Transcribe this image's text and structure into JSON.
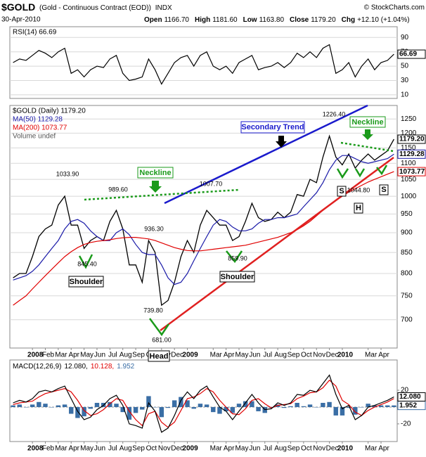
{
  "header": {
    "symbol": "$GOLD",
    "description": "(Gold - Continuous Contract (EOD))",
    "exchange": "INDX",
    "source": "© StockCharts.com",
    "date": "30-Apr-2010",
    "quote": [
      {
        "label": "Open",
        "value": "1166.70"
      },
      {
        "label": "High",
        "value": "1181.60"
      },
      {
        "label": "Low",
        "value": "1163.80"
      },
      {
        "label": "Close",
        "value": "1179.20"
      },
      {
        "label": "Chg",
        "value": "+12.10 (+1.04%)"
      }
    ]
  },
  "chart_data": [
    {
      "type": "line",
      "ylim": [
        5,
        105
      ],
      "yticks": [
        10,
        30,
        50,
        70,
        90
      ],
      "grid": true,
      "series": [
        {
          "name": "RSI(14) 66.69",
          "tag": "66.69",
          "color": "#000000",
          "values": [
            55,
            60,
            58,
            65,
            72,
            68,
            62,
            70,
            75,
            40,
            45,
            35,
            45,
            50,
            48,
            60,
            65,
            40,
            30,
            32,
            35,
            60,
            45,
            25,
            40,
            55,
            62,
            65,
            50,
            65,
            70,
            50,
            45,
            50,
            40,
            55,
            60,
            65,
            45,
            48,
            50,
            55,
            48,
            55,
            68,
            62,
            70,
            62,
            75,
            80,
            40,
            45,
            55,
            35,
            50,
            60,
            45,
            55,
            58,
            66.69
          ]
        }
      ]
    },
    {
      "type": "line",
      "log_scale": true,
      "ylim": [
        645,
        1300
      ],
      "yticks": [
        700,
        750,
        800,
        850,
        900,
        950,
        1000,
        1050,
        1100,
        1150,
        1200,
        1250
      ],
      "grid": true,
      "volume_label": "Volume undef",
      "categories": [
        null,
        null,
        null,
        "2008",
        null,
        "Feb",
        null,
        "Mar",
        null,
        "Apr",
        null,
        "May",
        null,
        "Jun",
        null,
        "Jul",
        null,
        "Aug",
        null,
        "Sep",
        null,
        "Oct",
        null,
        "Nov",
        null,
        "Dec",
        null,
        "2009",
        null,
        null,
        null,
        "Mar",
        null,
        "Apr",
        null,
        "May",
        null,
        "Jun",
        null,
        "Jul",
        null,
        "Aug",
        null,
        "Sep",
        null,
        "Oct",
        null,
        "Nov",
        null,
        "Dec",
        null,
        "2010",
        null,
        null,
        null,
        "Mar",
        null,
        "Apr",
        null,
        null
      ],
      "series": [
        {
          "name": "$GOLD (Daily) 1179.20",
          "tag": "1179.20",
          "color": "#000000",
          "values": [
            790,
            800,
            800,
            840,
            890,
            910,
            920,
            975,
            1000,
            920,
            920,
            860,
            880,
            890,
            880,
            930,
            960,
            910,
            820,
            820,
            780,
            880,
            850,
            730,
            740,
            780,
            840,
            880,
            850,
            920,
            960,
            940,
            920,
            920,
            880,
            890,
            930,
            980,
            940,
            930,
            935,
            955,
            940,
            955,
            1005,
            1000,
            1050,
            1040,
            1120,
            1190,
            1120,
            1095,
            1130,
            1085,
            1110,
            1130,
            1110,
            1125,
            1140,
            1179.2
          ]
        },
        {
          "name": "MA(50) 1129.28",
          "tag": "1129.28",
          "color": "#1a1aa8",
          "values": [
            785,
            790,
            795,
            805,
            820,
            840,
            860,
            880,
            910,
            930,
            935,
            925,
            905,
            890,
            880,
            880,
            900,
            910,
            895,
            870,
            850,
            845,
            845,
            820,
            790,
            775,
            780,
            800,
            830,
            860,
            890,
            920,
            935,
            930,
            915,
            905,
            905,
            910,
            925,
            935,
            935,
            940,
            940,
            945,
            950,
            970,
            990,
            1010,
            1040,
            1080,
            1110,
            1125,
            1125,
            1115,
            1105,
            1100,
            1105,
            1110,
            1115,
            1129.28
          ]
        },
        {
          "name": "MA(200) 1073.77",
          "tag": "1073.77",
          "color": "#e00000",
          "values": [
            730,
            740,
            750,
            765,
            780,
            795,
            810,
            825,
            840,
            852,
            862,
            870,
            875,
            878,
            880,
            882,
            885,
            887,
            888,
            888,
            886,
            884,
            880,
            874,
            868,
            862,
            858,
            855,
            854,
            854,
            856,
            858,
            860,
            862,
            864,
            866,
            868,
            872,
            876,
            880,
            884,
            888,
            894,
            900,
            908,
            918,
            930,
            945,
            960,
            975,
            988,
            1000,
            1012,
            1022,
            1032,
            1042,
            1050,
            1058,
            1066,
            1073.77
          ]
        }
      ],
      "annotations": [
        "1033.90",
        "989.60",
        "936.30",
        "1007.70",
        "1226.40",
        "845.40",
        "739.80",
        "681.00",
        "859.90",
        "1044.80",
        "Neckline",
        "Neckline",
        "Secondary Trend",
        "Shoulder",
        "Shoulder",
        "Head",
        "S",
        "H",
        "S"
      ]
    },
    {
      "type": "line",
      "indicator": "MACD(12,26,9)",
      "ylim": [
        -41,
        56
      ],
      "yticks": [
        -20,
        20
      ],
      "grid": false,
      "categories": [
        null,
        null,
        null,
        "2008",
        null,
        "Feb",
        null,
        "Mar",
        null,
        "Apr",
        null,
        "May",
        null,
        "Jun",
        null,
        "Jul",
        null,
        "Aug",
        null,
        "Sep",
        null,
        "Oct",
        null,
        "Nov",
        null,
        "Dec",
        null,
        "2009",
        null,
        null,
        null,
        "Mar",
        null,
        "Apr",
        null,
        "May",
        null,
        "Jun",
        null,
        "Jul",
        null,
        "Aug",
        null,
        "Sep",
        null,
        "Oct",
        null,
        "Nov",
        null,
        "Dec",
        null,
        "2010",
        null,
        null,
        null,
        "Mar",
        null,
        "Apr",
        null,
        null
      ],
      "series": [
        {
          "name": "1.952",
          "tag": "1.952",
          "type": "bar",
          "color": "#3a6ea5",
          "values": [
            2,
            3,
            0,
            3,
            6,
            4,
            0,
            2,
            3,
            -8,
            -13,
            -11,
            -2,
            5,
            5,
            6,
            4,
            -6,
            -15,
            -7,
            -3,
            13,
            0,
            -12,
            -1,
            8,
            12,
            8,
            -2,
            4,
            3,
            -6,
            -8,
            -5,
            -7,
            4,
            7,
            7,
            -5,
            -7,
            -1,
            3,
            -1,
            1,
            5,
            1,
            3,
            0,
            5,
            6,
            -10,
            -10,
            -1,
            -9,
            0,
            4,
            2,
            2,
            2,
            1.952
          ]
        },
        {
          "name": "10.128,",
          "color": "#e00000",
          "values": [
            3,
            5,
            6,
            7,
            12,
            16,
            18,
            20,
            22,
            18,
            8,
            -4,
            -10,
            -8,
            -3,
            4,
            10,
            8,
            -5,
            -15,
            -22,
            -8,
            -5,
            -18,
            -24,
            -18,
            -4,
            10,
            12,
            16,
            22,
            18,
            8,
            0,
            -8,
            -9,
            -2,
            8,
            10,
            4,
            -1,
            2,
            3,
            4,
            10,
            13,
            17,
            18,
            23,
            32,
            25,
            8,
            3,
            -6,
            -10,
            -4,
            0,
            3,
            6,
            10.128
          ]
        },
        {
          "name": "12.080,",
          "tag": "12.080",
          "color": "#000000",
          "values": [
            5,
            8,
            6,
            10,
            18,
            20,
            18,
            22,
            25,
            10,
            -5,
            -15,
            -12,
            -3,
            2,
            10,
            14,
            2,
            -20,
            -22,
            -25,
            5,
            -5,
            -30,
            -25,
            -10,
            8,
            18,
            10,
            20,
            25,
            12,
            0,
            -5,
            -15,
            -5,
            5,
            15,
            5,
            -3,
            -2,
            5,
            2,
            5,
            15,
            14,
            20,
            18,
            28,
            38,
            15,
            -2,
            2,
            -15,
            -10,
            0,
            2,
            5,
            8,
            12.08
          ]
        }
      ]
    }
  ]
}
